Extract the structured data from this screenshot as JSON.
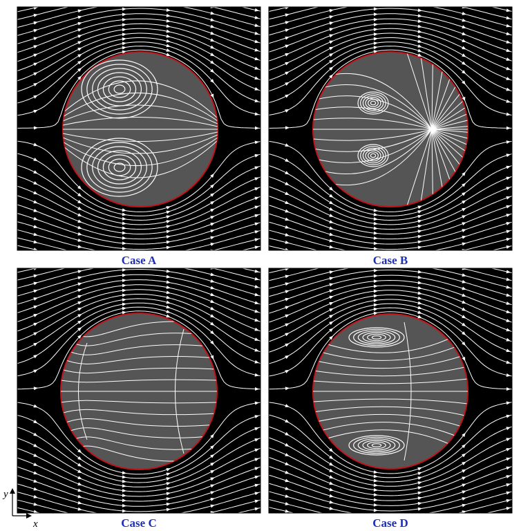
{
  "panels": [
    {
      "label": "Case A"
    },
    {
      "label": "Case B"
    },
    {
      "label": "Case C"
    },
    {
      "label": "Case D"
    }
  ],
  "axes": {
    "x": "x",
    "y": "y"
  }
}
